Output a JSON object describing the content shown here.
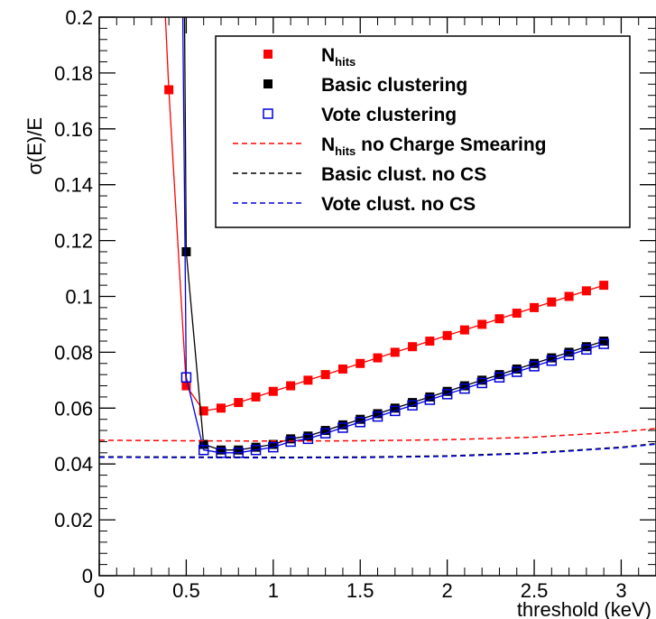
{
  "chart_data": {
    "type": "line",
    "title": "",
    "xlabel": "threshold (keV)",
    "ylabel": "σ(E)/E",
    "xlim": [
      0,
      3.2
    ],
    "ylim": [
      0,
      0.2
    ],
    "x_ticks": [
      "0",
      "0.5",
      "1",
      "1.5",
      "2",
      "2.5",
      "3"
    ],
    "y_ticks": [
      "0",
      "0.02",
      "0.04",
      "0.06",
      "0.08",
      "0.1",
      "0.12",
      "0.14",
      "0.16",
      "0.18",
      "0.2"
    ],
    "grid": false,
    "legend_position": "top-right",
    "series": [
      {
        "name": "Nhits",
        "name_main": "N",
        "name_sub": "hits",
        "style": "red-filled-square-marker",
        "color": "#ff0000",
        "x": [
          0.4,
          0.5,
          0.6,
          0.7,
          0.8,
          0.9,
          1.0,
          1.1,
          1.2,
          1.3,
          1.4,
          1.5,
          1.6,
          1.7,
          1.8,
          1.9,
          2.0,
          2.1,
          2.2,
          2.3,
          2.4,
          2.5,
          2.6,
          2.7,
          2.8,
          2.9
        ],
        "y": [
          0.174,
          0.068,
          0.059,
          0.06,
          0.062,
          0.064,
          0.066,
          0.068,
          0.07,
          0.072,
          0.074,
          0.076,
          0.078,
          0.08,
          0.082,
          0.084,
          0.086,
          0.088,
          0.09,
          0.092,
          0.094,
          0.096,
          0.098,
          0.1,
          0.102,
          0.104
        ],
        "line_extension": [
          [
            0.4,
            0.174
          ],
          [
            0.38,
            0.2
          ]
        ]
      },
      {
        "name": "Basic clustering",
        "style": "black-filled-square-marker",
        "color": "#000000",
        "x": [
          0.5,
          0.6,
          0.7,
          0.8,
          0.9,
          1.0,
          1.1,
          1.2,
          1.3,
          1.4,
          1.5,
          1.6,
          1.7,
          1.8,
          1.9,
          2.0,
          2.1,
          2.2,
          2.3,
          2.4,
          2.5,
          2.6,
          2.7,
          2.8,
          2.9
        ],
        "y": [
          0.116,
          0.047,
          0.045,
          0.045,
          0.046,
          0.047,
          0.049,
          0.05,
          0.052,
          0.054,
          0.056,
          0.058,
          0.06,
          0.062,
          0.064,
          0.066,
          0.068,
          0.07,
          0.072,
          0.074,
          0.076,
          0.078,
          0.08,
          0.082,
          0.084
        ],
        "line_extension": [
          [
            0.5,
            0.116
          ],
          [
            0.49,
            0.2
          ]
        ]
      },
      {
        "name": "Vote clustering",
        "style": "blue-open-square-marker",
        "color": "#0000dd",
        "x": [
          0.5,
          0.6,
          0.7,
          0.8,
          0.9,
          1.0,
          1.1,
          1.2,
          1.3,
          1.4,
          1.5,
          1.6,
          1.7,
          1.8,
          1.9,
          2.0,
          2.1,
          2.2,
          2.3,
          2.4,
          2.5,
          2.6,
          2.7,
          2.8,
          2.9
        ],
        "y": [
          0.071,
          0.045,
          0.044,
          0.044,
          0.045,
          0.046,
          0.048,
          0.049,
          0.051,
          0.053,
          0.055,
          0.057,
          0.059,
          0.061,
          0.063,
          0.065,
          0.067,
          0.069,
          0.071,
          0.073,
          0.075,
          0.077,
          0.079,
          0.081,
          0.083
        ],
        "line_extension": [
          [
            0.5,
            0.071
          ],
          [
            0.48,
            0.2
          ]
        ]
      },
      {
        "name": "Nhits no Charge Smearing",
        "name_main": "N",
        "name_sub": "hits",
        "name_rest": " no Charge Smearing",
        "style": "red-dashed",
        "color": "#ff0000",
        "x": [
          0.0,
          0.5,
          1.0,
          1.5,
          2.0,
          2.5,
          3.0,
          3.2
        ],
        "y": [
          0.0485,
          0.0483,
          0.0482,
          0.0483,
          0.0487,
          0.0496,
          0.0515,
          0.0527
        ]
      },
      {
        "name": "Basic clust. no CS",
        "style": "black-dashed",
        "color": "#000000",
        "x": [
          0.0,
          0.5,
          1.0,
          1.5,
          2.0,
          2.5,
          3.0,
          3.2
        ],
        "y": [
          0.0426,
          0.0425,
          0.0424,
          0.0425,
          0.0429,
          0.044,
          0.046,
          0.0473
        ]
      },
      {
        "name": "Vote clust. no CS",
        "style": "blue-dashed",
        "color": "#0000dd",
        "x": [
          0.0,
          0.5,
          1.0,
          1.5,
          2.0,
          2.5,
          3.0,
          3.2
        ],
        "y": [
          0.0424,
          0.0423,
          0.0422,
          0.0423,
          0.0427,
          0.0438,
          0.0458,
          0.0471
        ]
      }
    ]
  }
}
